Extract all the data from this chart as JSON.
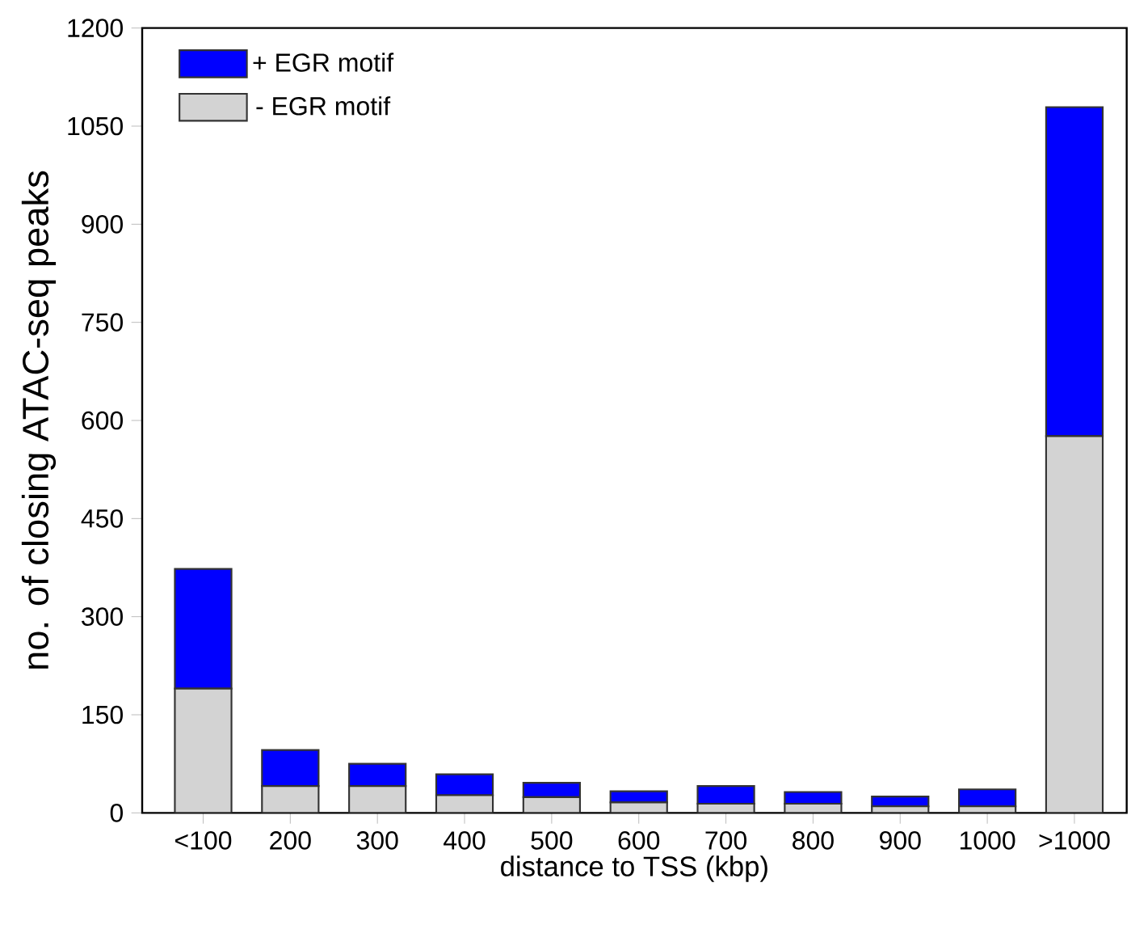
{
  "chart_data": {
    "type": "bar",
    "stacked": true,
    "xlabel": "distance to TSS (kbp)",
    "ylabel": "no. of closing ATAC-seq peaks",
    "categories": [
      "<100",
      "200",
      "300",
      "400",
      "500",
      "600",
      "700",
      "800",
      "900",
      "1000",
      ">1000"
    ],
    "series": [
      {
        "name": "- EGR motif",
        "color": "#d3d3d3",
        "values": [
          190,
          41,
          41,
          27,
          24,
          16,
          14,
          14,
          10,
          10,
          576
        ]
      },
      {
        "name": "+ EGR motif",
        "color": "#0000ff",
        "values": [
          183,
          55,
          34,
          32,
          22,
          17,
          27,
          18,
          15,
          26,
          503
        ]
      }
    ],
    "ylim": [
      0,
      1200
    ],
    "yticks": [
      0,
      150,
      300,
      450,
      600,
      750,
      900,
      1050,
      1200
    ],
    "grid": false,
    "legend": "top left"
  }
}
